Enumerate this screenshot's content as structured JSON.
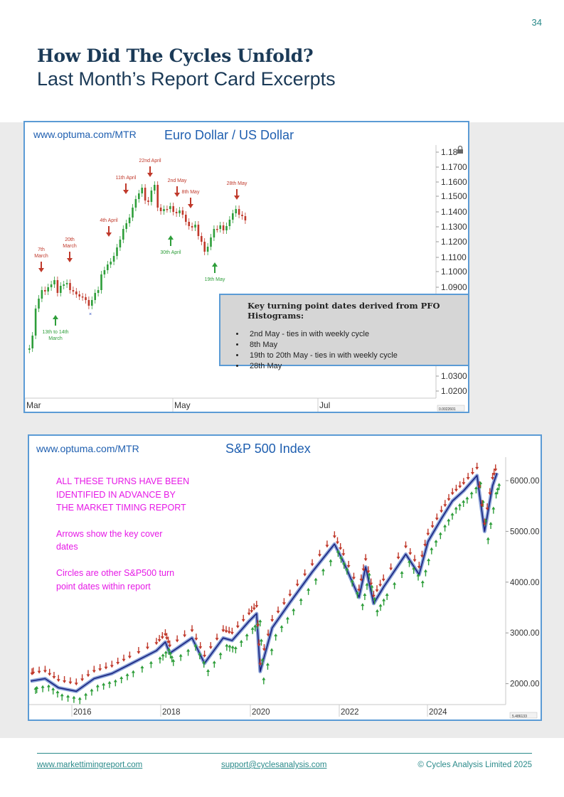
{
  "page_number": "34",
  "header": {
    "title": "How Did The Cycles Unfold?",
    "subtitle": "Last Month’s Report Card Excerpts"
  },
  "chart_data": [
    {
      "type": "candlestick",
      "title": "Euro Dollar / US Dollar",
      "source": "www.optuma.com/MTR",
      "x_ticks": [
        "Mar",
        "May",
        "Jul"
      ],
      "y_ticks": [
        "1.18",
        "1.1700",
        "1.1600",
        "1.1500",
        "1.1400",
        "1.1300",
        "1.1200",
        "1.1100",
        "1.1000",
        "1.0900",
        "1.0300",
        "1.0200"
      ],
      "corner_readout": "0.0022601",
      "down_arrows": [
        "7th March",
        "20th March",
        "4th April",
        "11th April",
        "22nd April",
        "2nd May",
        "8th May",
        "28th May"
      ],
      "up_arrows": [
        "13th to 14th March",
        "30th April",
        "19th May"
      ],
      "key_box": {
        "title": "Key turning point dates derived from PFO Histograms:",
        "items": [
          "2nd May - ties in with weekly cycle",
          "8th May",
          "19th to 20th May - ties in with weekly cycle",
          "28th May"
        ]
      }
    },
    {
      "type": "line",
      "title": "S&P 500 Index",
      "source": "www.optuma.com/MTR",
      "x_ticks": [
        "2016",
        "2018",
        "2020",
        "2022",
        "2024"
      ],
      "y_ticks": [
        "6000.00",
        "5000.00",
        "4000.00",
        "3000.00",
        "2000.00"
      ],
      "corner_readout": "5.486133",
      "notes": [
        "ALL THESE TURNS HAVE BEEN",
        "IDENTIFIED IN ADVANCE BY",
        "THE MARKET TIMING REPORT",
        "Arrows show the key cover",
        "dates",
        "Circles are other S&P500 turn",
        "point dates within report"
      ]
    }
  ],
  "colors": {
    "accent": "#2a8a8a",
    "title": "#1b3a57",
    "frame": "#5b9bd5",
    "up": "#2e9e3a",
    "down": "#c0392b",
    "note": "#e619e6"
  },
  "footer": {
    "website": "www.markettimingreport.com",
    "email": "support@cyclesanalysis.com",
    "copyright": "© Cycles Analysis Limited 2025"
  }
}
